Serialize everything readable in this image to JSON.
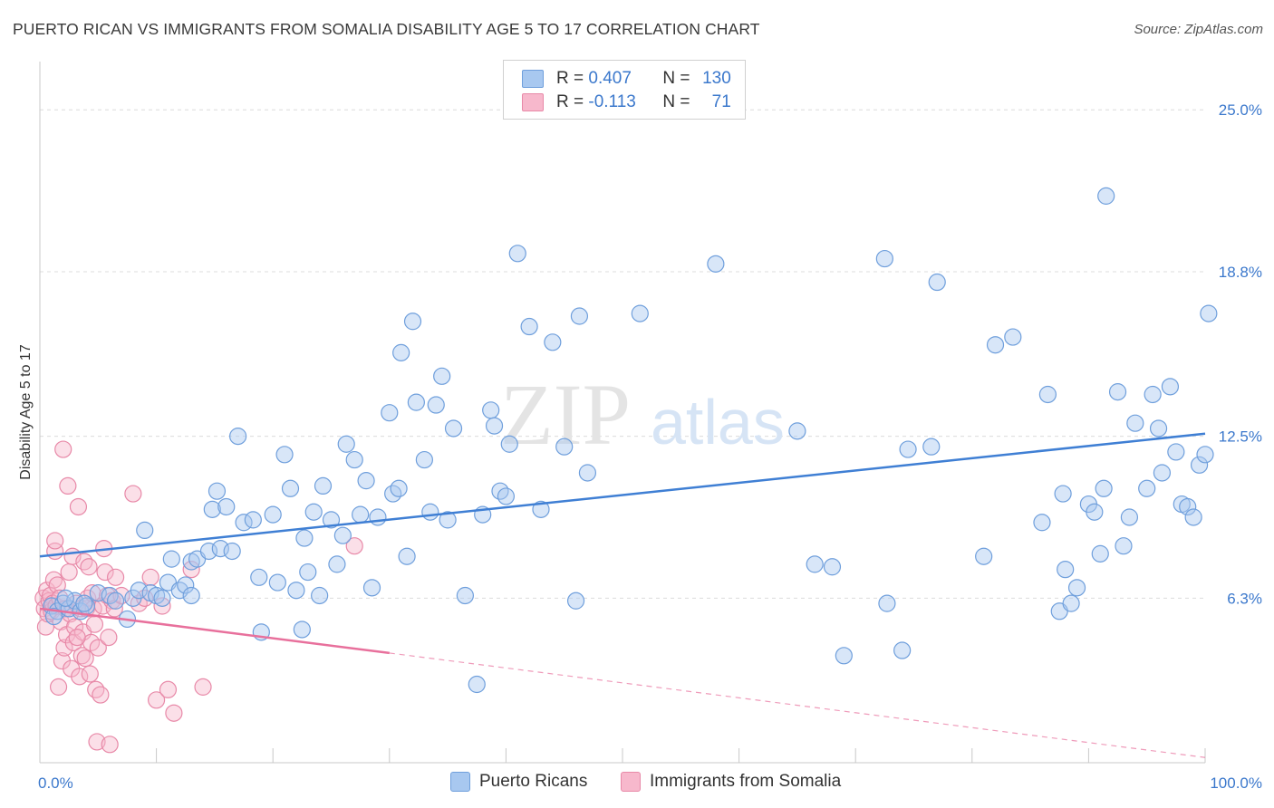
{
  "title": "PUERTO RICAN VS IMMIGRANTS FROM SOMALIA DISABILITY AGE 5 TO 17 CORRELATION CHART",
  "source": "Source: ZipAtlas.com",
  "watermark": {
    "zip": "ZIP",
    "atlas": "atlas"
  },
  "legend": {
    "rows": [
      {
        "r_label": "R =",
        "r_value": "0.407",
        "n_label": "N =",
        "n_value": "130",
        "color": "#a8c8f0",
        "border": "#6f9fdc"
      },
      {
        "r_label": "R =",
        "r_value": "-0.113",
        "n_label": "N =",
        "n_value": "71",
        "color": "#f7b8cc",
        "border": "#e889a8"
      }
    ]
  },
  "bottom_legend": [
    {
      "label": "Puerto Ricans",
      "color": "#a8c8f0",
      "border": "#6f9fdc"
    },
    {
      "label": "Immigrants from Somalia",
      "color": "#f7b8cc",
      "border": "#e889a8"
    }
  ],
  "chart_data": {
    "type": "scatter",
    "title": "PUERTO RICAN VS IMMIGRANTS FROM SOMALIA DISABILITY AGE 5 TO 17 CORRELATION CHART",
    "xlabel": "",
    "ylabel": "Disability Age 5 to 17",
    "xlim": [
      0,
      100
    ],
    "ylim": [
      0,
      26.5
    ],
    "x_tick_labels": [
      {
        "value": 0,
        "label": "0.0%"
      },
      {
        "value": 100,
        "label": "100.0%"
      }
    ],
    "y_tick_labels": [
      {
        "value": 6.3,
        "label": "6.3%"
      },
      {
        "value": 12.5,
        "label": "12.5%"
      },
      {
        "value": 18.8,
        "label": "18.8%"
      },
      {
        "value": 25.0,
        "label": "25.0%"
      }
    ],
    "grid": "horizontal dashed",
    "colors": {
      "blue": "#3f7fd4",
      "pink": "#e8709c",
      "axis_text": "#3b78cc"
    },
    "series": [
      {
        "name": "Puerto Ricans",
        "color": "#a8c8f0",
        "edge": "#6f9fdc",
        "trend": {
          "x0": 0,
          "y0": 7.9,
          "x1": 100,
          "y1": 12.6,
          "style": "solid",
          "color": "#3f7fd4"
        },
        "points": [
          [
            1.0,
            6.0
          ],
          [
            1.5,
            5.8
          ],
          [
            2.0,
            6.1
          ],
          [
            2.5,
            5.9
          ],
          [
            3.0,
            6.2
          ],
          [
            3.5,
            5.8
          ],
          [
            4.0,
            6.0
          ],
          [
            1.2,
            5.6
          ],
          [
            2.2,
            6.3
          ],
          [
            3.8,
            6.1
          ],
          [
            5.0,
            6.5
          ],
          [
            6.0,
            6.4
          ],
          [
            6.5,
            6.2
          ],
          [
            7.5,
            5.5
          ],
          [
            8.0,
            6.3
          ],
          [
            8.5,
            6.6
          ],
          [
            9.0,
            8.9
          ],
          [
            9.5,
            6.5
          ],
          [
            10.0,
            6.4
          ],
          [
            10.5,
            6.3
          ],
          [
            11.0,
            6.9
          ],
          [
            11.3,
            7.8
          ],
          [
            12.0,
            6.6
          ],
          [
            12.5,
            6.8
          ],
          [
            13.0,
            6.4
          ],
          [
            13.0,
            7.7
          ],
          [
            13.5,
            7.8
          ],
          [
            14.5,
            8.1
          ],
          [
            14.8,
            9.7
          ],
          [
            15.2,
            10.4
          ],
          [
            15.5,
            8.2
          ],
          [
            16.0,
            9.8
          ],
          [
            16.5,
            8.1
          ],
          [
            17.0,
            12.5
          ],
          [
            17.5,
            9.2
          ],
          [
            18.3,
            9.3
          ],
          [
            18.8,
            7.1
          ],
          [
            19.0,
            5.0
          ],
          [
            20.0,
            9.5
          ],
          [
            20.4,
            6.9
          ],
          [
            21.0,
            11.8
          ],
          [
            21.5,
            10.5
          ],
          [
            22.0,
            6.6
          ],
          [
            22.5,
            5.1
          ],
          [
            22.7,
            8.6
          ],
          [
            23.0,
            7.3
          ],
          [
            23.5,
            9.6
          ],
          [
            24.0,
            6.4
          ],
          [
            24.3,
            10.6
          ],
          [
            25.0,
            9.3
          ],
          [
            25.5,
            7.6
          ],
          [
            26.0,
            8.7
          ],
          [
            26.3,
            12.2
          ],
          [
            27.0,
            11.6
          ],
          [
            27.5,
            9.5
          ],
          [
            28.0,
            10.8
          ],
          [
            28.5,
            6.7
          ],
          [
            29.0,
            9.4
          ],
          [
            30.0,
            13.4
          ],
          [
            30.3,
            10.3
          ],
          [
            30.8,
            10.5
          ],
          [
            31.0,
            15.7
          ],
          [
            31.5,
            7.9
          ],
          [
            32.0,
            16.9
          ],
          [
            32.3,
            13.8
          ],
          [
            33.0,
            11.6
          ],
          [
            33.5,
            9.6
          ],
          [
            34.0,
            13.7
          ],
          [
            34.5,
            14.8
          ],
          [
            35.0,
            9.3
          ],
          [
            35.5,
            12.8
          ],
          [
            36.5,
            6.4
          ],
          [
            37.5,
            3.0
          ],
          [
            38.0,
            9.5
          ],
          [
            38.7,
            13.5
          ],
          [
            39.0,
            12.9
          ],
          [
            39.5,
            10.4
          ],
          [
            40.0,
            10.2
          ],
          [
            40.3,
            12.2
          ],
          [
            41.0,
            19.5
          ],
          [
            42.0,
            16.7
          ],
          [
            43.0,
            9.7
          ],
          [
            44.0,
            16.1
          ],
          [
            45.0,
            12.1
          ],
          [
            46.0,
            6.2
          ],
          [
            46.3,
            17.1
          ],
          [
            47.0,
            11.1
          ],
          [
            51.5,
            17.2
          ],
          [
            58.0,
            19.1
          ],
          [
            65.0,
            12.7
          ],
          [
            66.5,
            7.6
          ],
          [
            68.0,
            7.5
          ],
          [
            69.0,
            4.1
          ],
          [
            72.5,
            19.3
          ],
          [
            72.7,
            6.1
          ],
          [
            74.0,
            4.3
          ],
          [
            74.5,
            12.0
          ],
          [
            76.5,
            12.1
          ],
          [
            77.0,
            18.4
          ],
          [
            81.0,
            7.9
          ],
          [
            82.0,
            16.0
          ],
          [
            83.5,
            16.3
          ],
          [
            86.0,
            9.2
          ],
          [
            86.5,
            14.1
          ],
          [
            87.5,
            5.8
          ],
          [
            87.8,
            10.3
          ],
          [
            88.0,
            7.4
          ],
          [
            88.5,
            6.1
          ],
          [
            89.0,
            6.7
          ],
          [
            90.0,
            9.9
          ],
          [
            90.5,
            9.6
          ],
          [
            91.0,
            8.0
          ],
          [
            91.3,
            10.5
          ],
          [
            91.5,
            21.7
          ],
          [
            92.5,
            14.2
          ],
          [
            93.0,
            8.3
          ],
          [
            93.5,
            9.4
          ],
          [
            94.0,
            13.0
          ],
          [
            95.0,
            10.5
          ],
          [
            95.5,
            14.1
          ],
          [
            96.0,
            12.8
          ],
          [
            96.3,
            11.1
          ],
          [
            97.0,
            14.4
          ],
          [
            97.5,
            11.9
          ],
          [
            98.0,
            9.9
          ],
          [
            98.5,
            9.8
          ],
          [
            99.0,
            9.4
          ],
          [
            99.5,
            11.4
          ],
          [
            100.0,
            11.8
          ],
          [
            100.3,
            17.2
          ]
        ]
      },
      {
        "name": "Immigrants from Somalia",
        "color": "#f7b8cc",
        "edge": "#e889a8",
        "trend": {
          "x0": 0,
          "y0": 5.9,
          "x1": 30,
          "y1": 4.2,
          "style": "solid",
          "color": "#e8709c",
          "extension": {
            "x1": 100,
            "y1": 0.2,
            "style": "dashed"
          }
        },
        "points": [
          [
            0.3,
            6.3
          ],
          [
            0.4,
            5.9
          ],
          [
            0.5,
            5.2
          ],
          [
            0.6,
            6.6
          ],
          [
            0.7,
            5.7
          ],
          [
            0.8,
            6.2
          ],
          [
            0.9,
            6.4
          ],
          [
            1.0,
            5.8
          ],
          [
            1.1,
            6.1
          ],
          [
            1.2,
            7.0
          ],
          [
            1.3,
            8.1
          ],
          [
            1.3,
            8.5
          ],
          [
            1.4,
            6.0
          ],
          [
            1.5,
            6.8
          ],
          [
            1.6,
            2.9
          ],
          [
            1.7,
            6.3
          ],
          [
            1.8,
            5.4
          ],
          [
            1.9,
            3.9
          ],
          [
            2.0,
            12.0
          ],
          [
            2.1,
            4.4
          ],
          [
            2.2,
            5.9
          ],
          [
            2.3,
            4.9
          ],
          [
            2.4,
            10.6
          ],
          [
            2.5,
            7.3
          ],
          [
            2.6,
            5.7
          ],
          [
            2.7,
            3.6
          ],
          [
            2.8,
            7.9
          ],
          [
            2.9,
            4.6
          ],
          [
            3.0,
            5.2
          ],
          [
            3.1,
            6.1
          ],
          [
            3.3,
            9.8
          ],
          [
            3.4,
            3.3
          ],
          [
            3.5,
            5.9
          ],
          [
            3.6,
            4.1
          ],
          [
            3.7,
            5.0
          ],
          [
            3.8,
            7.7
          ],
          [
            3.9,
            4.0
          ],
          [
            4.0,
            5.9
          ],
          [
            4.1,
            6.3
          ],
          [
            4.2,
            7.5
          ],
          [
            4.3,
            3.4
          ],
          [
            4.4,
            4.6
          ],
          [
            4.5,
            6.5
          ],
          [
            4.6,
            5.9
          ],
          [
            4.7,
            5.3
          ],
          [
            4.8,
            2.8
          ],
          [
            4.9,
            0.8
          ],
          [
            5.0,
            4.4
          ],
          [
            5.2,
            2.6
          ],
          [
            5.4,
            6.0
          ],
          [
            5.5,
            8.2
          ],
          [
            5.6,
            7.3
          ],
          [
            5.8,
            6.4
          ],
          [
            5.9,
            4.8
          ],
          [
            6.0,
            0.7
          ],
          [
            6.2,
            6.2
          ],
          [
            6.4,
            5.9
          ],
          [
            6.5,
            7.1
          ],
          [
            7.0,
            6.4
          ],
          [
            8.0,
            10.3
          ],
          [
            8.5,
            6.1
          ],
          [
            9.0,
            6.3
          ],
          [
            9.5,
            7.1
          ],
          [
            10.0,
            2.4
          ],
          [
            10.5,
            6.0
          ],
          [
            11.0,
            2.8
          ],
          [
            11.5,
            1.9
          ],
          [
            13.0,
            7.4
          ],
          [
            14.0,
            2.9
          ],
          [
            27.0,
            8.3
          ],
          [
            3.2,
            4.8
          ]
        ]
      }
    ]
  }
}
